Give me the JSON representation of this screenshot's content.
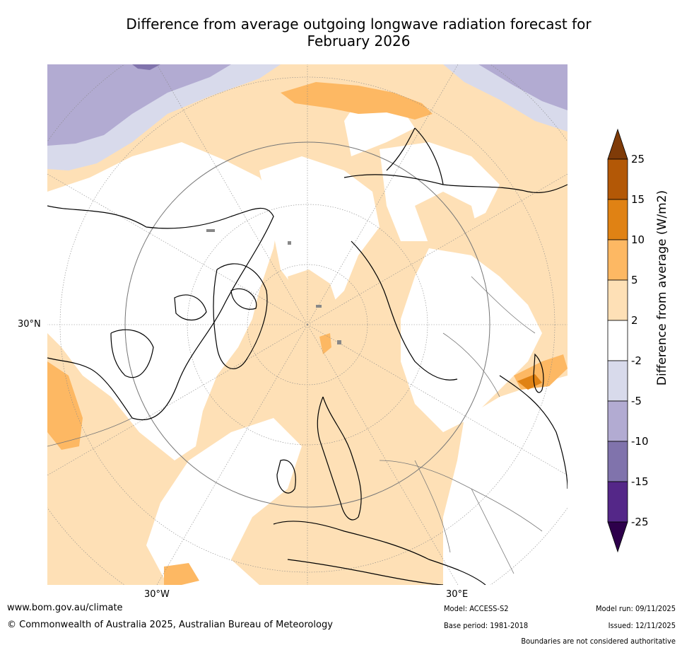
{
  "title_line1": "Difference from average outgoing longwave radiation forecast for",
  "title_line2": "February 2026",
  "map": {
    "projection": "north-polar-stereographic",
    "labels": {
      "lat_30n": "30°N",
      "lon_30w": "30°W",
      "lon_30e": "30°E"
    }
  },
  "colorbar": {
    "title": "Difference from average (W/m2)",
    "ticks": [
      "25",
      "15",
      "10",
      "5",
      "2",
      "-2",
      "-5",
      "-10",
      "-15",
      "-25"
    ],
    "colors": {
      "over": "#7f3b08",
      "b15_25": "#b35806",
      "b10_15": "#e08214",
      "b5_10": "#fdb863",
      "b2_5": "#fee0b6",
      "neutral": "#ffffff",
      "n2_5": "#d8daeb",
      "n5_10": "#b2abd2",
      "n10_15": "#8073ac",
      "n15_25": "#542788",
      "under": "#2d004b"
    }
  },
  "footer": {
    "website": "www.bom.gov.au/climate",
    "copyright": "© Commonwealth of Australia 2025, Australian Bureau of Meteorology",
    "model": "Model: ACCESS-S2",
    "base_period": "Base period: 1981-2018",
    "model_run": "Model run: 09/11/2025",
    "issued": "Issued: 12/11/2025",
    "disclaimer": "Boundaries are not considered authoritative"
  }
}
